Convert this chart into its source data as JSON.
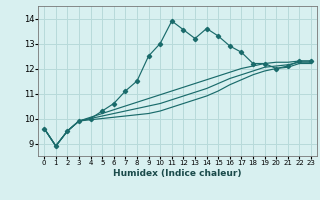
{
  "xlabel": "Humidex (Indice chaleur)",
  "ylabel": "",
  "x_values": [
    0,
    1,
    2,
    3,
    4,
    5,
    6,
    7,
    8,
    9,
    10,
    11,
    12,
    13,
    14,
    15,
    16,
    17,
    18,
    19,
    20,
    21,
    22,
    23
  ],
  "main_line": [
    9.6,
    8.9,
    9.5,
    9.9,
    10.0,
    10.3,
    10.6,
    11.1,
    11.5,
    12.5,
    13.0,
    13.9,
    13.55,
    13.2,
    13.6,
    13.3,
    12.9,
    12.65,
    12.2,
    12.2,
    12.0,
    12.1,
    12.3,
    12.3
  ],
  "line2": [
    9.6,
    8.9,
    9.5,
    9.9,
    10.05,
    10.2,
    10.35,
    10.5,
    10.65,
    10.8,
    10.95,
    11.1,
    11.25,
    11.4,
    11.55,
    11.7,
    11.85,
    12.0,
    12.1,
    12.2,
    12.25,
    12.25,
    12.3,
    12.3
  ],
  "line3": [
    9.6,
    8.9,
    9.5,
    9.9,
    10.0,
    10.1,
    10.2,
    10.3,
    10.4,
    10.5,
    10.6,
    10.75,
    10.9,
    11.05,
    11.2,
    11.4,
    11.6,
    11.75,
    11.9,
    12.05,
    12.1,
    12.15,
    12.25,
    12.25
  ],
  "line4": [
    9.6,
    8.9,
    9.5,
    9.9,
    9.95,
    10.0,
    10.05,
    10.1,
    10.15,
    10.2,
    10.3,
    10.45,
    10.6,
    10.75,
    10.9,
    11.1,
    11.35,
    11.55,
    11.75,
    11.9,
    12.0,
    12.05,
    12.2,
    12.2
  ],
  "line_color": "#1a6b6b",
  "bg_color": "#d8f0f0",
  "grid_color": "#b8dada",
  "ylim": [
    8.5,
    14.5
  ],
  "xlim": [
    -0.5,
    23.5
  ],
  "yticks": [
    9,
    10,
    11,
    12,
    13,
    14
  ],
  "xticks": [
    0,
    1,
    2,
    3,
    4,
    5,
    6,
    7,
    8,
    9,
    10,
    11,
    12,
    13,
    14,
    15,
    16,
    17,
    18,
    19,
    20,
    21,
    22,
    23
  ]
}
